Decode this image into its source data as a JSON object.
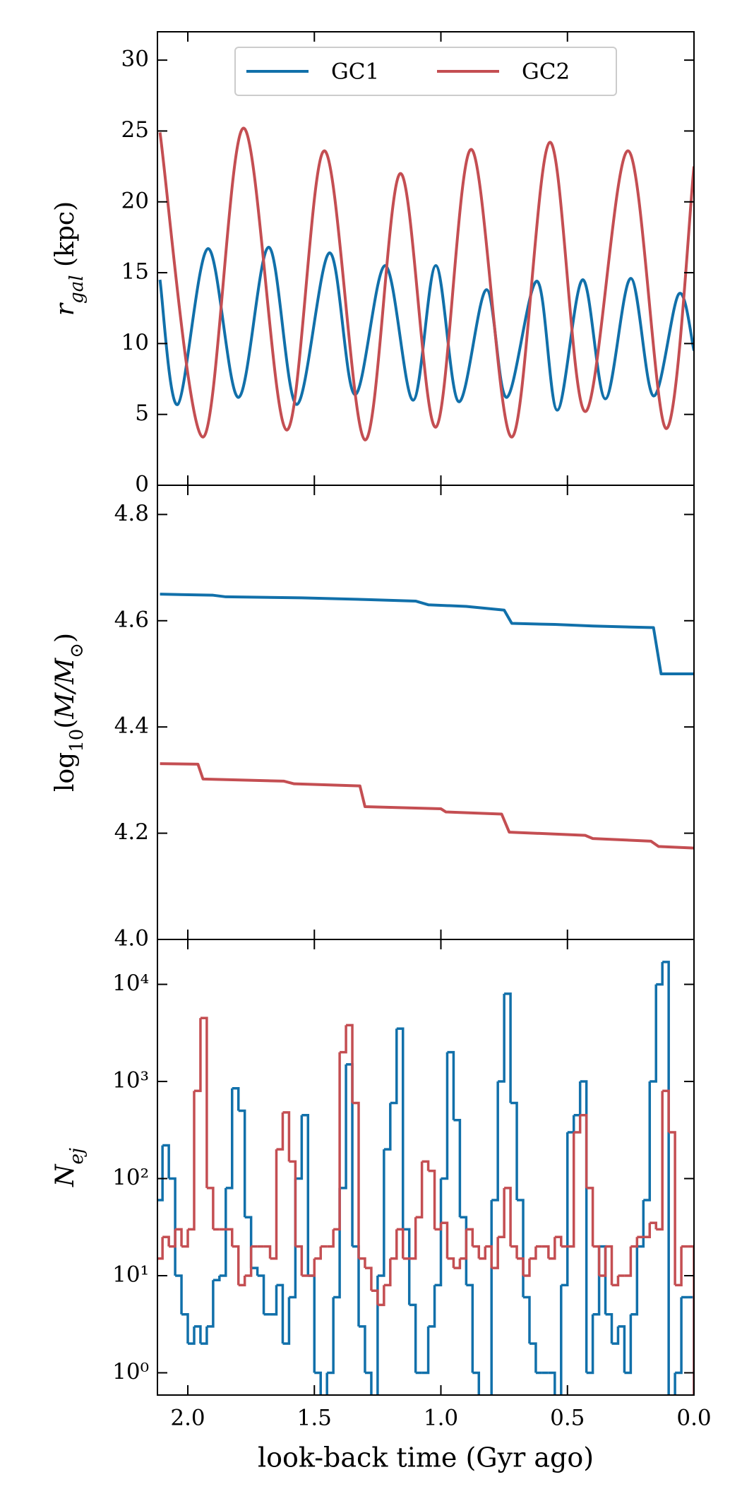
{
  "chart_data": [
    {
      "type": "line",
      "smooth": true,
      "ylabel": [
        {
          "text": "r",
          "italic": true
        },
        {
          "text": "gal",
          "italic": true,
          "sub": true
        },
        {
          "text": " (kpc)"
        }
      ],
      "xlim": [
        2.12,
        0
      ],
      "xticks": [
        {
          "value": 2,
          "label": "2.0"
        },
        1.5,
        {
          "value": 1,
          "label": "1.0"
        },
        0.5,
        {
          "value": 0,
          "label": "0.0"
        }
      ],
      "ylim": [
        0,
        32
      ],
      "yticks": [
        0,
        5,
        10,
        15,
        20,
        25,
        30
      ],
      "legend": "upper center",
      "series": [
        {
          "name": "GC1",
          "color": "#1170aa",
          "x": [
            2.11,
            2.04,
            1.92,
            1.8,
            1.68,
            1.57,
            1.44,
            1.34,
            1.22,
            1.11,
            1.02,
            0.93,
            0.82,
            0.74,
            0.62,
            0.54,
            0.44,
            0.35,
            0.25,
            0.16,
            0.06,
            0.0
          ],
          "values": [
            14.5,
            5.7,
            16.7,
            6.2,
            16.8,
            5.7,
            16.4,
            6.4,
            15.5,
            6.0,
            15.5,
            5.9,
            13.8,
            6.2,
            14.4,
            5.3,
            14.5,
            6.1,
            14.6,
            6.3,
            13.5,
            9.5
          ]
        },
        {
          "name": "GC2",
          "color": "#c44e52",
          "x": [
            2.11,
            1.94,
            1.78,
            1.61,
            1.46,
            1.3,
            1.16,
            1.02,
            0.88,
            0.72,
            0.57,
            0.43,
            0.26,
            0.11,
            0.0
          ],
          "values": [
            24.9,
            3.4,
            25.2,
            3.9,
            23.6,
            3.2,
            22.0,
            4.1,
            23.7,
            3.4,
            24.2,
            5.2,
            23.6,
            4.0,
            22.5
          ]
        }
      ]
    },
    {
      "type": "line",
      "smooth": false,
      "ylabel": [
        {
          "text": "log"
        },
        {
          "text": "10",
          "sub": true
        },
        {
          "text": "("
        },
        {
          "text": "M/M",
          "italic": true
        },
        {
          "text": "⊙",
          "sub": true
        },
        {
          "text": ")"
        }
      ],
      "xlim": [
        2.12,
        0
      ],
      "xticks": [
        {
          "value": 2,
          "label": "2.0"
        },
        1.5,
        {
          "value": 1,
          "label": "1.0"
        },
        0.5,
        {
          "value": 0,
          "label": "0.0"
        }
      ],
      "ylim": [
        4.0,
        4.855
      ],
      "yticks": [
        {
          "value": 4,
          "label": "4.0"
        },
        4.2,
        4.4,
        4.6,
        4.8
      ],
      "series": [
        {
          "color": "#1170aa",
          "x": [
            2.11,
            1.9,
            1.85,
            1.55,
            1.3,
            1.1,
            1.05,
            0.9,
            0.75,
            0.72,
            0.55,
            0.4,
            0.16,
            0.13,
            0.0
          ],
          "values": [
            4.65,
            4.648,
            4.645,
            4.643,
            4.64,
            4.637,
            4.63,
            4.627,
            4.62,
            4.595,
            4.593,
            4.59,
            4.587,
            4.5,
            4.5
          ]
        },
        {
          "color": "#c44e52",
          "x": [
            2.11,
            1.96,
            1.94,
            1.62,
            1.58,
            1.32,
            1.3,
            1.0,
            0.98,
            0.76,
            0.73,
            0.43,
            0.4,
            0.17,
            0.14,
            0.0
          ],
          "values": [
            4.331,
            4.33,
            4.302,
            4.298,
            4.293,
            4.289,
            4.25,
            4.246,
            4.24,
            4.236,
            4.202,
            4.196,
            4.19,
            4.185,
            4.175,
            4.172
          ]
        }
      ]
    },
    {
      "type": "histogram",
      "ylog": true,
      "ylabel": [
        {
          "text": "N",
          "italic": true
        },
        {
          "text": "ej",
          "italic": true,
          "sub": true
        }
      ],
      "xlabel": "look-back time (Gyr ago)",
      "xlim": [
        2.12,
        0
      ],
      "xticks": [
        {
          "value": 2,
          "label": "2.0"
        },
        1.5,
        {
          "value": 1,
          "label": "1.0"
        },
        0.5,
        {
          "value": 0,
          "label": "0.0"
        }
      ],
      "ylim": [
        0.59,
        29000
      ],
      "yticks": [
        {
          "value": 1,
          "label": "10⁰"
        },
        {
          "value": 10,
          "label": "10¹"
        },
        {
          "value": 100,
          "label": "10²"
        },
        {
          "value": 1000,
          "label": "10³"
        },
        {
          "value": 10000,
          "label": "10⁴"
        }
      ],
      "bins": [
        0,
        0.025,
        0.05,
        0.075,
        0.1,
        0.125,
        0.15,
        0.175,
        0.2,
        0.225,
        0.25,
        0.275,
        0.3,
        0.325,
        0.35,
        0.375,
        0.4,
        0.425,
        0.45,
        0.475,
        0.5,
        0.525,
        0.55,
        0.575,
        0.6,
        0.625,
        0.65,
        0.675,
        0.7,
        0.725,
        0.75,
        0.775,
        0.8,
        0.825,
        0.85,
        0.875,
        0.9,
        0.925,
        0.95,
        0.975,
        1,
        1.025,
        1.05,
        1.075,
        1.1,
        1.125,
        1.15,
        1.175,
        1.2,
        1.225,
        1.25,
        1.275,
        1.3,
        1.325,
        1.35,
        1.375,
        1.4,
        1.425,
        1.45,
        1.475,
        1.5,
        1.525,
        1.55,
        1.575,
        1.6,
        1.625,
        1.65,
        1.675,
        1.7,
        1.725,
        1.75,
        1.775,
        1.8,
        1.825,
        1.85,
        1.875,
        1.9,
        1.925,
        1.95,
        1.975,
        2,
        2.025,
        2.05,
        2.075,
        2.1,
        2.125
      ],
      "series": [
        {
          "color": "#1170aa",
          "values": [
            6,
            6,
            1,
            0,
            17000,
            10000,
            1000,
            60,
            20,
            4,
            1,
            3,
            2,
            4,
            20,
            4,
            1,
            1000,
            450,
            300,
            8,
            0,
            1,
            1,
            1,
            2,
            6,
            60,
            600,
            8000,
            1000,
            60,
            0,
            0,
            1,
            8,
            40,
            400,
            2000,
            100,
            8,
            3,
            1,
            1,
            5,
            30,
            3500,
            600,
            200,
            10,
            0,
            1,
            3,
            20,
            1500,
            80,
            6,
            1,
            0,
            1,
            10,
            450,
            100,
            6,
            2,
            8,
            4,
            4,
            10,
            12,
            40,
            500,
            850,
            80,
            10,
            9,
            3,
            2,
            3,
            2,
            4,
            10,
            100,
            220,
            60
          ]
        },
        {
          "color": "#c44e52",
          "values": [
            20,
            20,
            8,
            300,
            800,
            30,
            35,
            25,
            25,
            20,
            10,
            10,
            8,
            20,
            10,
            20,
            80,
            450,
            300,
            20,
            20,
            25,
            15,
            20,
            20,
            15,
            10,
            15,
            20,
            80,
            25,
            12,
            20,
            15,
            20,
            30,
            15,
            12,
            15,
            35,
            30,
            120,
            150,
            40,
            15,
            15,
            30,
            15,
            8,
            5,
            7,
            12,
            15,
            600,
            3800,
            2000,
            30,
            20,
            20,
            15,
            10,
            10,
            20,
            150,
            480,
            200,
            15,
            20,
            20,
            20,
            10,
            8,
            20,
            30,
            30,
            30,
            80,
            4500,
            800,
            30,
            20,
            30,
            20,
            25,
            15
          ]
        }
      ]
    }
  ]
}
